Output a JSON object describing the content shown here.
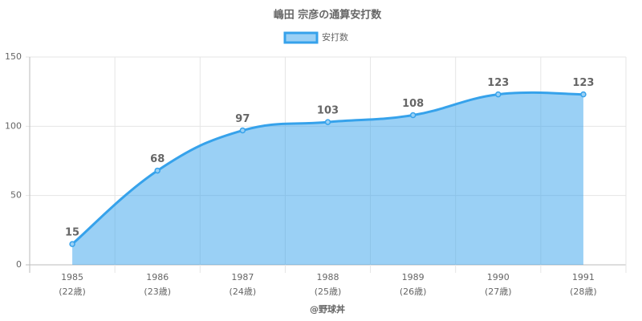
{
  "chart_data": {
    "type": "area",
    "title": "嶋田 宗彦の通算安打数",
    "categories": [
      "1985",
      "1986",
      "1987",
      "1988",
      "1989",
      "1990",
      "1991"
    ],
    "category_sublabels": [
      "(22歳)",
      "(23歳)",
      "(24歳)",
      "(25歳)",
      "(26歳)",
      "(27歳)",
      "(28歳)"
    ],
    "x_label": "@野球丼",
    "series": [
      {
        "name": "安打数",
        "color": "#36a2eb",
        "values": [
          15,
          68,
          97,
          103,
          108,
          123,
          123
        ]
      }
    ],
    "ylim": [
      0,
      150
    ],
    "yticks": [
      0,
      50,
      100,
      150
    ],
    "grid": true,
    "legend": "top"
  }
}
